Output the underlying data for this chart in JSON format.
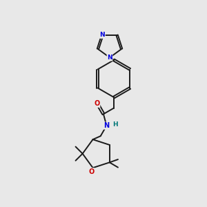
{
  "bg_color": "#e8e8e8",
  "bond_color": "#1a1a1a",
  "N_color": "#0000dd",
  "O_color": "#cc0000",
  "H_color": "#007777",
  "lw": 1.4,
  "dbo": 0.032,
  "figsize": [
    3.0,
    3.0
  ],
  "dpi": 100,
  "xlim": [
    0,
    10
  ],
  "ylim": [
    0,
    10
  ]
}
